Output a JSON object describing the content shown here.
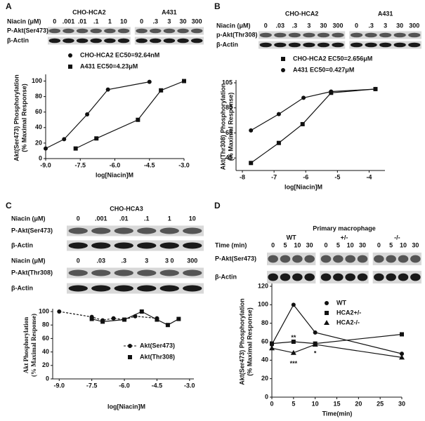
{
  "chart_data": [
    {
      "type": "scatter",
      "panel_label": "A",
      "xlabel": "log[Niacin]M",
      "ylabel": [
        "Akt(Ser473) Phosphorylation",
        "(% Maximal Response)"
      ],
      "xlim": [
        -9,
        -3
      ],
      "xticks": [
        {
          "value": -9,
          "label": "-9.0"
        },
        {
          "value": -7.5,
          "label": "-7.5"
        },
        {
          "value": -6,
          "label": "-6.0"
        },
        {
          "value": -4.5,
          "label": "-4.5"
        },
        {
          "value": -3,
          "label": "-3.0"
        }
      ],
      "ylim": [
        0,
        105
      ],
      "yticks": [
        0,
        20,
        40,
        60,
        80,
        100
      ],
      "series": [
        {
          "name": "CHO-HCA2 EC50=92.64nM",
          "marker": "circle",
          "color": "#111111",
          "x": [
            -9,
            -8.2,
            -7.2,
            -6.3,
            -4.5
          ],
          "values": [
            13,
            25,
            57,
            89,
            99
          ]
        },
        {
          "name": "A431  EC50=4.23μM",
          "marker": "square",
          "color": "#111111",
          "x": [
            -7.7,
            -6.8,
            -5,
            -4,
            -3
          ],
          "values": [
            13,
            26,
            50,
            88,
            100
          ]
        }
      ]
    },
    {
      "type": "scatter",
      "panel_label": "B",
      "xlabel": "log[Niacin]M",
      "ylabel": [
        "Akt(Thr308) Phosphorylation",
        "(% Maximal Response)"
      ],
      "xlim": [
        -8.2,
        -3.5
      ],
      "xticks": [
        -8,
        -7,
        -6,
        -5,
        -4
      ],
      "ylim": [
        35,
        105
      ],
      "yticks": [
        45,
        65,
        85,
        105
      ],
      "series": [
        {
          "name": "CHO-HCA2 EC50=2.656μM",
          "marker": "square",
          "color": "#111111",
          "x": [
            -7.73,
            -6.85,
            -6.1,
            -5.2,
            -3.8
          ],
          "values": [
            41,
            57,
            72,
            97,
            100
          ]
        },
        {
          "name": "A431  EC50=0.427μM",
          "marker": "circle",
          "color": "#111111",
          "x": [
            -7.73,
            -6.85,
            -6.07,
            -5.2,
            -3.8
          ],
          "values": [
            67,
            80,
            93,
            98,
            100
          ]
        }
      ]
    },
    {
      "type": "scatter",
      "panel_label": "C",
      "xlabel": "log[Niacin]M",
      "ylabel": [
        "Akt Phosphorylation",
        "(% Maximal Response)"
      ],
      "xlim": [
        -9.3,
        -2.8
      ],
      "xticks": [
        {
          "value": -9,
          "label": "-9.0"
        },
        {
          "value": -7.5,
          "label": "-7.5"
        },
        {
          "value": -6,
          "label": "-6.0"
        },
        {
          "value": -4.5,
          "label": "-4.5"
        },
        {
          "value": -3,
          "label": "-3.0"
        }
      ],
      "ylim": [
        0,
        100
      ],
      "yticks": [
        0,
        20,
        40,
        60,
        80,
        100
      ],
      "series": [
        {
          "name": "Akt(Ser473)",
          "marker": "circle",
          "dash": true,
          "color": "#111111",
          "x": [
            -9,
            -7.5,
            -7,
            -6.5,
            -6,
            -5.5,
            -4.5
          ],
          "values": [
            100,
            92,
            87,
            90,
            88,
            93,
            90
          ]
        },
        {
          "name": "Akt(Thr308)",
          "marker": "square",
          "color": "#111111",
          "x": [
            -7.5,
            -7,
            -6,
            -5.2,
            -4.5,
            -4,
            -3.5
          ],
          "values": [
            89,
            85,
            88,
            100,
            88,
            80,
            89
          ]
        }
      ]
    },
    {
      "type": "scatter",
      "panel_label": "D",
      "xlabel": "Time(min)",
      "ylabel": [
        "Akt(Ser473) Phosphorylation",
        "(% Maximal Response)"
      ],
      "xlim": [
        0,
        30
      ],
      "xticks": [
        0,
        5,
        10,
        15,
        20,
        25,
        30
      ],
      "ylim": [
        0,
        120
      ],
      "yticks": [
        0,
        20,
        40,
        60,
        80,
        100,
        120
      ],
      "annotations": [
        "**",
        "***",
        "*"
      ],
      "series": [
        {
          "name": "WT",
          "marker": "circle",
          "color": "#111111",
          "x": [
            0,
            5,
            10,
            30
          ],
          "values": [
            57,
            100,
            70,
            47
          ]
        },
        {
          "name": "HCA2+/-",
          "marker": "square",
          "color": "#111111",
          "x": [
            0,
            5,
            10,
            30
          ],
          "values": [
            58,
            60,
            58,
            68
          ]
        },
        {
          "name": "HCA2-/-",
          "marker": "triangle",
          "color": "#111111",
          "x": [
            0,
            5,
            10,
            30
          ],
          "values": [
            53,
            48,
            57,
            43
          ]
        }
      ]
    }
  ],
  "blots": [
    {
      "sections": [
        {
          "label": "Niacin (μM)",
          "groups": [
            {
              "name": "CHO-HCA2",
              "lanes": [
                "0",
                ".001",
                ".01",
                ".1",
                "1",
                "10"
              ]
            },
            {
              "name": "A431",
              "lanes": [
                "0",
                ".3",
                "3",
                "30",
                "300"
              ]
            }
          ],
          "rows": [
            "P-Akt(Ser473)",
            "β-Actin"
          ]
        }
      ]
    },
    {
      "sections": [
        {
          "label": "Niacin (μM)",
          "groups": [
            {
              "name": "CHO-HCA2",
              "lanes": [
                "0",
                ".03",
                ".3",
                "3",
                "30",
                "300"
              ]
            },
            {
              "name": "A431",
              "lanes": [
                "0",
                ".3",
                "3",
                "30",
                "300"
              ]
            }
          ],
          "rows": [
            "p-Akt(Thr308)",
            "β-Actin"
          ]
        }
      ]
    },
    {
      "title": "CHO-HCA3",
      "sections": [
        {
          "label": "Niacin (μM)",
          "groups": [
            {
              "lanes": [
                "0",
                ".001",
                ".01",
                ".1",
                "1",
                "10"
              ]
            }
          ],
          "rows": [
            "P-Akt(Ser473)",
            "β-Actin"
          ]
        },
        {
          "label": "Niacin (μM)",
          "groups": [
            {
              "lanes": [
                "0",
                ".03",
                ".3",
                "3",
                "3 0",
                "300"
              ]
            }
          ],
          "rows": [
            "P-Akt(Thr308)",
            "β-Actin"
          ]
        }
      ]
    },
    {
      "title": "Primary macrophage",
      "sections": [
        {
          "label": "Time (min)",
          "groups": [
            {
              "name": "WT",
              "lanes": [
                "0",
                "5",
                "10",
                "30"
              ]
            },
            {
              "name": "+/-",
              "lanes": [
                "0",
                "5",
                "10",
                "30"
              ]
            },
            {
              "name": "-/-",
              "lanes": [
                "0",
                "5",
                "10",
                "30"
              ]
            }
          ],
          "rows": [
            "P-Akt(Ser473)",
            "β-Actin"
          ]
        }
      ]
    }
  ]
}
